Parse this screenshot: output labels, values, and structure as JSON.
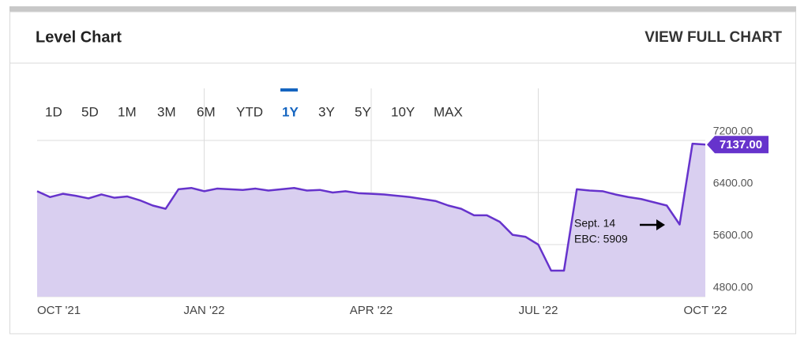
{
  "header": {
    "title": "Level Chart",
    "link": "VIEW FULL CHART"
  },
  "ranges": [
    {
      "label": "1D",
      "selected": false
    },
    {
      "label": "5D",
      "selected": false
    },
    {
      "label": "1M",
      "selected": false
    },
    {
      "label": "3M",
      "selected": false
    },
    {
      "label": "6M",
      "selected": false
    },
    {
      "label": "YTD",
      "selected": false
    },
    {
      "label": "1Y",
      "selected": true
    },
    {
      "label": "3Y",
      "selected": false
    },
    {
      "label": "5Y",
      "selected": false
    },
    {
      "label": "10Y",
      "selected": false
    },
    {
      "label": "MAX",
      "selected": false
    }
  ],
  "chart_data": {
    "type": "area",
    "categories": [
      "OCT '21",
      null,
      null,
      null,
      null,
      null,
      null,
      null,
      null,
      null,
      null,
      null,
      null,
      "JAN '22",
      null,
      null,
      null,
      null,
      null,
      null,
      null,
      null,
      null,
      null,
      null,
      null,
      "APR '22",
      null,
      null,
      null,
      null,
      null,
      null,
      null,
      null,
      null,
      null,
      null,
      null,
      "JUL '22",
      null,
      null,
      null,
      null,
      null,
      null,
      null,
      null,
      null,
      null,
      null,
      null,
      "OCT '22"
    ],
    "series": [
      {
        "name": "Level",
        "color": "#6633cc",
        "fill": "#d9cff0",
        "values": [
          6420,
          6330,
          6380,
          6350,
          6310,
          6370,
          6320,
          6340,
          6280,
          6200,
          6150,
          6450,
          6470,
          6420,
          6460,
          6450,
          6440,
          6460,
          6430,
          6450,
          6470,
          6430,
          6440,
          6400,
          6420,
          6390,
          6380,
          6370,
          6350,
          6330,
          6300,
          6270,
          6200,
          6150,
          6050,
          6050,
          5950,
          5750,
          5720,
          5600,
          5200,
          5200,
          6450,
          6430,
          6420,
          6370,
          6330,
          6300,
          6250,
          6200,
          5909,
          7150,
          7137
        ]
      }
    ],
    "ylim": [
      4800,
      8000
    ],
    "yticks": [
      {
        "value": 4800,
        "label": "4800.00"
      },
      {
        "value": 5600,
        "label": "5600.00"
      },
      {
        "value": 6400,
        "label": "6400.00"
      },
      {
        "value": 7200,
        "label": "7200.00"
      }
    ],
    "grid": true,
    "current": {
      "value": 7137,
      "label": "7137.00"
    },
    "annotation": {
      "lines": [
        "Sept. 14",
        "EBC: 5909"
      ]
    }
  }
}
